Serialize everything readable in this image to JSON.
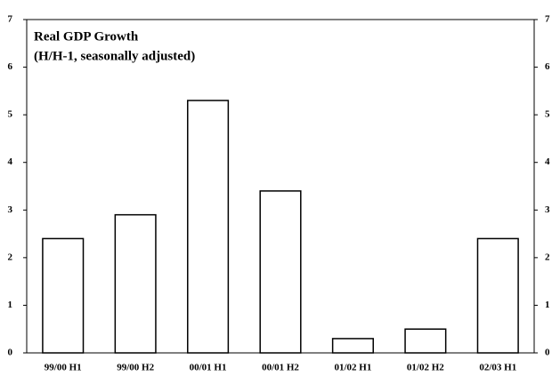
{
  "chart_data": {
    "type": "bar",
    "title": "Real GDP Growth",
    "subtitle": "(H/H-1, seasonally adjusted)",
    "categories": [
      "99/00 H1",
      "99/00 H2",
      "00/01 H1",
      "00/01 H2",
      "01/02 H1",
      "01/02 H2",
      "02/03 H1"
    ],
    "values": [
      2.4,
      2.9,
      5.3,
      3.4,
      0.3,
      0.5,
      2.4
    ],
    "color": "#ffffff",
    "ylim": [
      0,
      7
    ],
    "yticks": [
      0,
      1,
      2,
      3,
      4,
      5,
      6,
      7
    ],
    "y2lim": [
      0,
      7
    ],
    "y2ticks": [
      0,
      1,
      2,
      3,
      4,
      5,
      6,
      7
    ],
    "grid": false
  }
}
